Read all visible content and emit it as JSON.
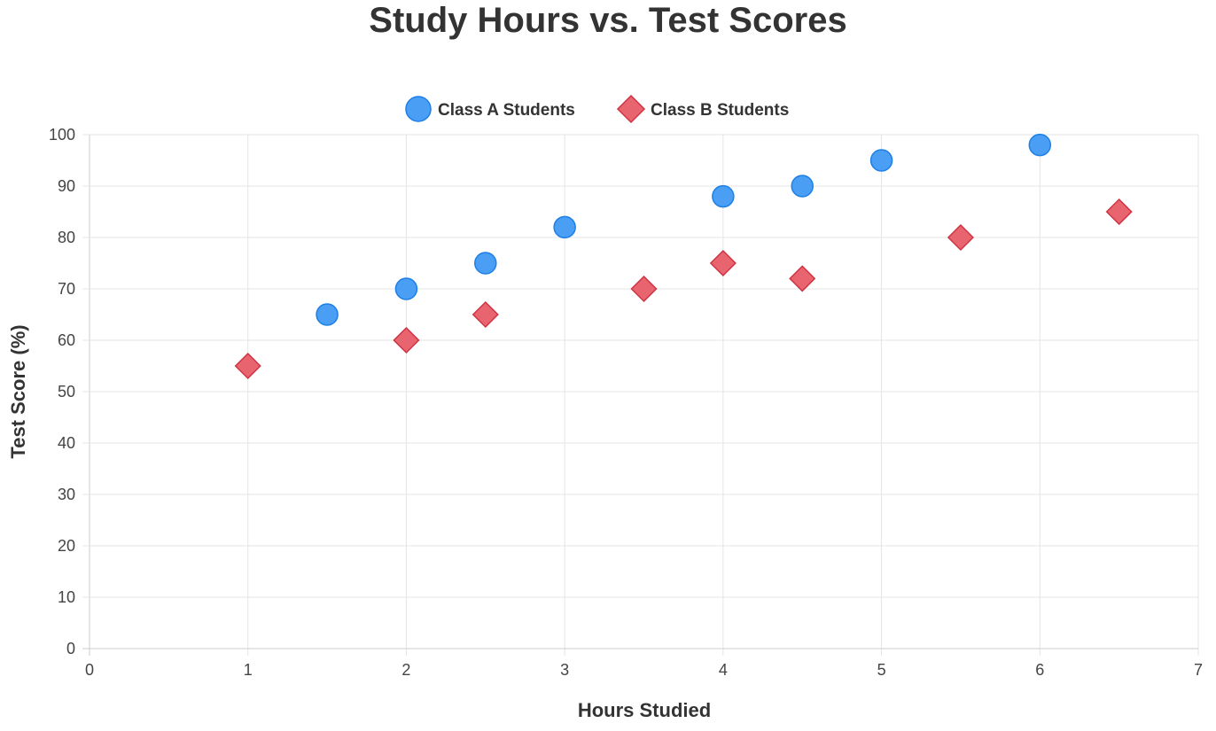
{
  "chart_data": {
    "type": "scatter",
    "title": "Study Hours vs. Test Scores",
    "xlabel": "Hours Studied",
    "ylabel": "Test Score (%)",
    "xlim": [
      0,
      7
    ],
    "ylim": [
      0,
      100
    ],
    "xticks": [
      "0",
      "1",
      "2",
      "3",
      "4",
      "5",
      "6",
      "7"
    ],
    "yticks": [
      "0",
      "10",
      "20",
      "30",
      "40",
      "50",
      "60",
      "70",
      "80",
      "90",
      "100"
    ],
    "grid": true,
    "legend_position": "top",
    "series": [
      {
        "name": "Class A Students",
        "marker": "circle",
        "color": "#4a9ff5",
        "border": "#1e7fe6",
        "points": [
          [
            1.5,
            65
          ],
          [
            2,
            70
          ],
          [
            2.5,
            75
          ],
          [
            3,
            82
          ],
          [
            4,
            88
          ],
          [
            4.5,
            90
          ],
          [
            5,
            95
          ],
          [
            6,
            98
          ]
        ]
      },
      {
        "name": "Class B Students",
        "marker": "diamond",
        "color": "#e8656f",
        "border": "#cf3344",
        "points": [
          [
            1,
            55
          ],
          [
            2,
            60
          ],
          [
            2.5,
            65
          ],
          [
            3.5,
            70
          ],
          [
            4,
            75
          ],
          [
            4.5,
            72
          ],
          [
            5.5,
            80
          ],
          [
            6.5,
            85
          ]
        ]
      }
    ]
  }
}
